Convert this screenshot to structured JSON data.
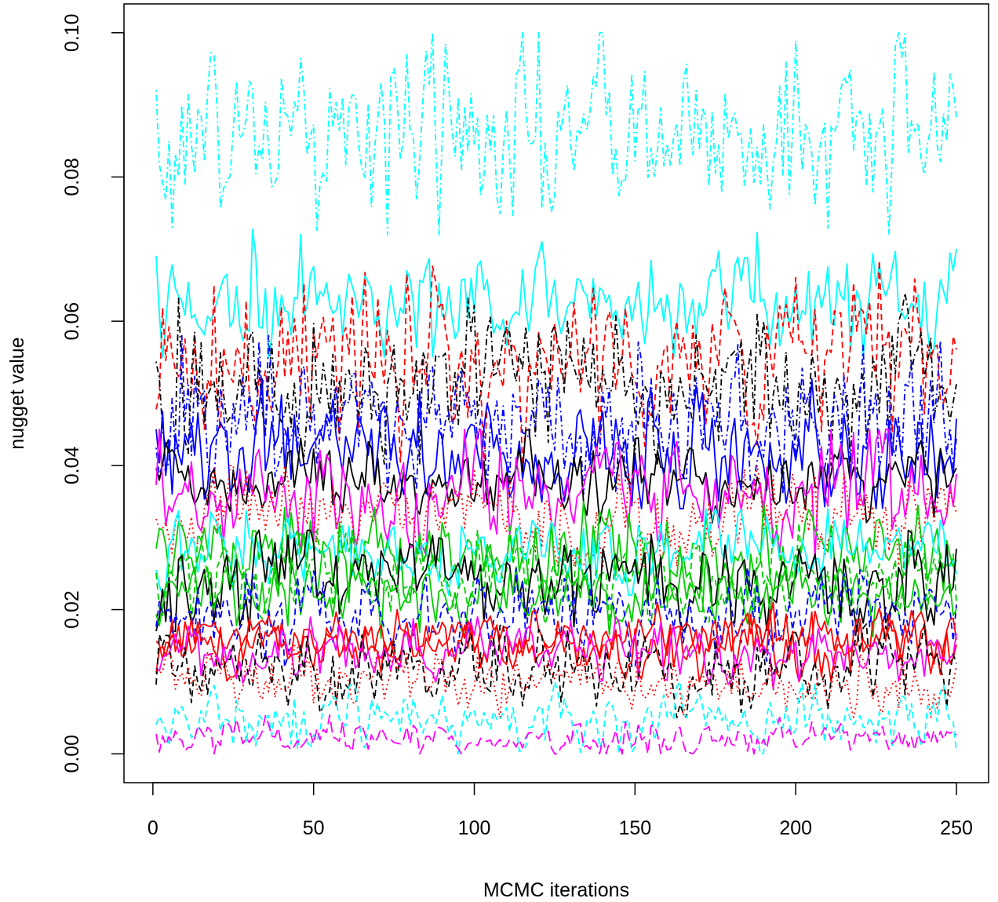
{
  "chart_data": {
    "type": "line",
    "title": "",
    "xlabel": "MCMC iterations",
    "ylabel": "nugget value",
    "xlim": [
      -9,
      260
    ],
    "ylim": [
      -0.004,
      0.104
    ],
    "x_ticks": [
      0,
      50,
      100,
      150,
      200,
      250
    ],
    "x_tick_labels": [
      "0",
      "50",
      "100",
      "150",
      "200",
      "250"
    ],
    "y_ticks": [
      0.0,
      0.02,
      0.04,
      0.06,
      0.08,
      0.1
    ],
    "y_tick_labels": [
      "0.00",
      "0.02",
      "0.04",
      "0.06",
      "0.08",
      "0.10"
    ],
    "iterations": [
      1,
      250
    ],
    "grid": false,
    "legend": "none",
    "palette": [
      "#000000",
      "#ff0000",
      "#00cd00",
      "#0000ff",
      "#00ffff",
      "#ff00ff"
    ],
    "series_summary": [
      {
        "color": "#00ffff",
        "linestyle": "dotdash",
        "mean": 0.086,
        "spread": 0.0065,
        "min": 0.072,
        "max": 0.1
      },
      {
        "color": "#00ffff",
        "linestyle": "solid",
        "mean": 0.063,
        "spread": 0.0035,
        "min": 0.055,
        "max": 0.075
      },
      {
        "color": "#ff0000",
        "linestyle": "dashed",
        "mean": 0.055,
        "spread": 0.0055,
        "min": 0.04,
        "max": 0.073
      },
      {
        "color": "#000000",
        "linestyle": "dotdash",
        "mean": 0.052,
        "spread": 0.005,
        "min": 0.04,
        "max": 0.07
      },
      {
        "color": "#0000ff",
        "linestyle": "dotdash",
        "mean": 0.046,
        "spread": 0.0045,
        "min": 0.036,
        "max": 0.058
      },
      {
        "color": "#0000ff",
        "linestyle": "solid",
        "mean": 0.042,
        "spread": 0.0035,
        "min": 0.034,
        "max": 0.052
      },
      {
        "color": "#000000",
        "linestyle": "solid",
        "mean": 0.038,
        "spread": 0.0025,
        "min": 0.032,
        "max": 0.045
      },
      {
        "color": "#ff00ff",
        "linestyle": "solid",
        "mean": 0.036,
        "spread": 0.0035,
        "min": 0.027,
        "max": 0.045
      },
      {
        "color": "#ff0000",
        "linestyle": "dotted",
        "mean": 0.033,
        "spread": 0.003,
        "min": 0.026,
        "max": 0.04
      },
      {
        "color": "#00cd00",
        "linestyle": "solid",
        "mean": 0.028,
        "spread": 0.003,
        "min": 0.021,
        "max": 0.035
      },
      {
        "color": "#00ffff",
        "linestyle": "solid",
        "mean": 0.028,
        "spread": 0.0025,
        "min": 0.022,
        "max": 0.034
      },
      {
        "color": "#00cd00",
        "linestyle": "dashed",
        "mean": 0.025,
        "spread": 0.003,
        "min": 0.018,
        "max": 0.032
      },
      {
        "color": "#000000",
        "linestyle": "solid",
        "mean": 0.024,
        "spread": 0.003,
        "min": 0.017,
        "max": 0.031
      },
      {
        "color": "#00cd00",
        "linestyle": "solid",
        "mean": 0.022,
        "spread": 0.0025,
        "min": 0.016,
        "max": 0.029
      },
      {
        "color": "#0000ff",
        "linestyle": "dashed",
        "mean": 0.019,
        "spread": 0.003,
        "min": 0.012,
        "max": 0.026
      },
      {
        "color": "#ff0000",
        "linestyle": "solid",
        "mean": 0.016,
        "spread": 0.0018,
        "min": 0.011,
        "max": 0.021
      },
      {
        "color": "#ff0000",
        "linestyle": "solid",
        "mean": 0.015,
        "spread": 0.002,
        "min": 0.01,
        "max": 0.02
      },
      {
        "color": "#ff00ff",
        "linestyle": "solid",
        "mean": 0.014,
        "spread": 0.002,
        "min": 0.009,
        "max": 0.019
      },
      {
        "color": "#000000",
        "linestyle": "dashed",
        "mean": 0.012,
        "spread": 0.0025,
        "min": 0.005,
        "max": 0.018
      },
      {
        "color": "#ff0000",
        "linestyle": "dotted",
        "mean": 0.01,
        "spread": 0.002,
        "min": 0.005,
        "max": 0.015
      },
      {
        "color": "#00ffff",
        "linestyle": "dashed",
        "mean": 0.005,
        "spread": 0.002,
        "min": 0.0,
        "max": 0.01
      },
      {
        "color": "#ff00ff",
        "linestyle": "longdash",
        "mean": 0.002,
        "spread": 0.0012,
        "min": 0.0,
        "max": 0.006
      }
    ]
  }
}
